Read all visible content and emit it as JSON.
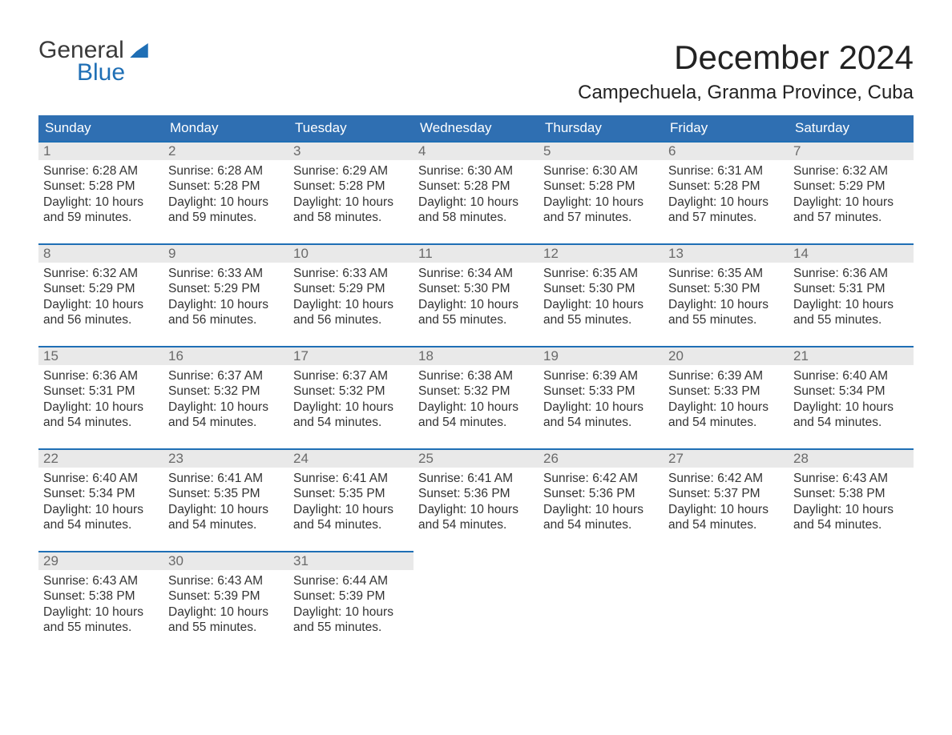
{
  "logo": {
    "line1": "General",
    "line2": "Blue"
  },
  "title": "December 2024",
  "location": "Campechuela, Granma Province, Cuba",
  "colors": {
    "header_bg": "#2f6fb2",
    "accent_line": "#1f6fb5",
    "row_stripe": "#e9e9e9",
    "daynum": "#6a6a6a",
    "text": "#333333",
    "page_bg": "#ffffff"
  },
  "weekdays": [
    "Sunday",
    "Monday",
    "Tuesday",
    "Wednesday",
    "Thursday",
    "Friday",
    "Saturday"
  ],
  "labels": {
    "sunrise": "Sunrise:",
    "sunset": "Sunset:",
    "daylight": "Daylight:"
  },
  "weeks": [
    [
      {
        "day": 1,
        "sunrise": "6:28 AM",
        "sunset": "5:28 PM",
        "daylight": "10 hours and 59 minutes."
      },
      {
        "day": 2,
        "sunrise": "6:28 AM",
        "sunset": "5:28 PM",
        "daylight": "10 hours and 59 minutes."
      },
      {
        "day": 3,
        "sunrise": "6:29 AM",
        "sunset": "5:28 PM",
        "daylight": "10 hours and 58 minutes."
      },
      {
        "day": 4,
        "sunrise": "6:30 AM",
        "sunset": "5:28 PM",
        "daylight": "10 hours and 58 minutes."
      },
      {
        "day": 5,
        "sunrise": "6:30 AM",
        "sunset": "5:28 PM",
        "daylight": "10 hours and 57 minutes."
      },
      {
        "day": 6,
        "sunrise": "6:31 AM",
        "sunset": "5:28 PM",
        "daylight": "10 hours and 57 minutes."
      },
      {
        "day": 7,
        "sunrise": "6:32 AM",
        "sunset": "5:29 PM",
        "daylight": "10 hours and 57 minutes."
      }
    ],
    [
      {
        "day": 8,
        "sunrise": "6:32 AM",
        "sunset": "5:29 PM",
        "daylight": "10 hours and 56 minutes."
      },
      {
        "day": 9,
        "sunrise": "6:33 AM",
        "sunset": "5:29 PM",
        "daylight": "10 hours and 56 minutes."
      },
      {
        "day": 10,
        "sunrise": "6:33 AM",
        "sunset": "5:29 PM",
        "daylight": "10 hours and 56 minutes."
      },
      {
        "day": 11,
        "sunrise": "6:34 AM",
        "sunset": "5:30 PM",
        "daylight": "10 hours and 55 minutes."
      },
      {
        "day": 12,
        "sunrise": "6:35 AM",
        "sunset": "5:30 PM",
        "daylight": "10 hours and 55 minutes."
      },
      {
        "day": 13,
        "sunrise": "6:35 AM",
        "sunset": "5:30 PM",
        "daylight": "10 hours and 55 minutes."
      },
      {
        "day": 14,
        "sunrise": "6:36 AM",
        "sunset": "5:31 PM",
        "daylight": "10 hours and 55 minutes."
      }
    ],
    [
      {
        "day": 15,
        "sunrise": "6:36 AM",
        "sunset": "5:31 PM",
        "daylight": "10 hours and 54 minutes."
      },
      {
        "day": 16,
        "sunrise": "6:37 AM",
        "sunset": "5:32 PM",
        "daylight": "10 hours and 54 minutes."
      },
      {
        "day": 17,
        "sunrise": "6:37 AM",
        "sunset": "5:32 PM",
        "daylight": "10 hours and 54 minutes."
      },
      {
        "day": 18,
        "sunrise": "6:38 AM",
        "sunset": "5:32 PM",
        "daylight": "10 hours and 54 minutes."
      },
      {
        "day": 19,
        "sunrise": "6:39 AM",
        "sunset": "5:33 PM",
        "daylight": "10 hours and 54 minutes."
      },
      {
        "day": 20,
        "sunrise": "6:39 AM",
        "sunset": "5:33 PM",
        "daylight": "10 hours and 54 minutes."
      },
      {
        "day": 21,
        "sunrise": "6:40 AM",
        "sunset": "5:34 PM",
        "daylight": "10 hours and 54 minutes."
      }
    ],
    [
      {
        "day": 22,
        "sunrise": "6:40 AM",
        "sunset": "5:34 PM",
        "daylight": "10 hours and 54 minutes."
      },
      {
        "day": 23,
        "sunrise": "6:41 AM",
        "sunset": "5:35 PM",
        "daylight": "10 hours and 54 minutes."
      },
      {
        "day": 24,
        "sunrise": "6:41 AM",
        "sunset": "5:35 PM",
        "daylight": "10 hours and 54 minutes."
      },
      {
        "day": 25,
        "sunrise": "6:41 AM",
        "sunset": "5:36 PM",
        "daylight": "10 hours and 54 minutes."
      },
      {
        "day": 26,
        "sunrise": "6:42 AM",
        "sunset": "5:36 PM",
        "daylight": "10 hours and 54 minutes."
      },
      {
        "day": 27,
        "sunrise": "6:42 AM",
        "sunset": "5:37 PM",
        "daylight": "10 hours and 54 minutes."
      },
      {
        "day": 28,
        "sunrise": "6:43 AM",
        "sunset": "5:38 PM",
        "daylight": "10 hours and 54 minutes."
      }
    ],
    [
      {
        "day": 29,
        "sunrise": "6:43 AM",
        "sunset": "5:38 PM",
        "daylight": "10 hours and 55 minutes."
      },
      {
        "day": 30,
        "sunrise": "6:43 AM",
        "sunset": "5:39 PM",
        "daylight": "10 hours and 55 minutes."
      },
      {
        "day": 31,
        "sunrise": "6:44 AM",
        "sunset": "5:39 PM",
        "daylight": "10 hours and 55 minutes."
      },
      null,
      null,
      null,
      null
    ]
  ]
}
